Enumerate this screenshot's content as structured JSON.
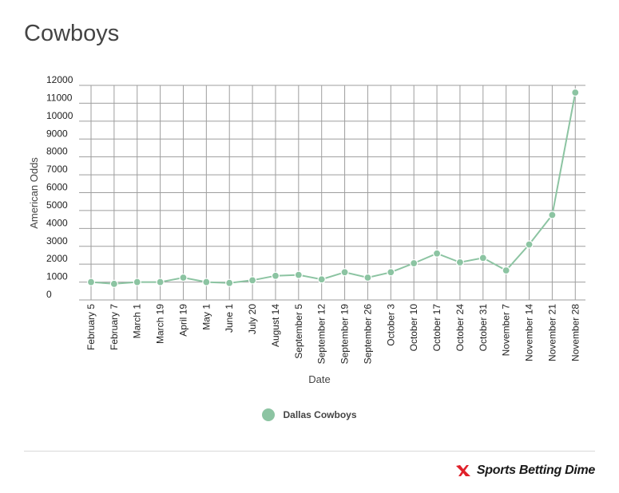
{
  "title": "Cowboys",
  "brand": {
    "name": "Sports Betting Dime",
    "icon": "sports-betting-dime-logo-icon",
    "accent": "#e0202a"
  },
  "chart_data": {
    "type": "line",
    "title": "Cowboys",
    "xlabel": "Date",
    "ylabel": "American Odds",
    "ylim": [
      0,
      12000
    ],
    "yticks": [
      0,
      1000,
      2000,
      3000,
      4000,
      5000,
      6000,
      7000,
      8000,
      9000,
      10000,
      11000,
      12000
    ],
    "grid": true,
    "legend_position": "bottom",
    "categories": [
      "February 5",
      "February 7",
      "March 1",
      "March 19",
      "April 19",
      "May 1",
      "June 1",
      "July 20",
      "August 14",
      "September 5",
      "September 12",
      "September 19",
      "September 26",
      "October 3",
      "October 10",
      "October 17",
      "October 24",
      "October 31",
      "November 7",
      "November 14",
      "November 21",
      "November 28"
    ],
    "series": [
      {
        "name": "Dallas Cowboys",
        "color": "#8cc4a2",
        "values": [
          1000,
          900,
          1000,
          1000,
          1250,
          1000,
          950,
          1100,
          1350,
          1400,
          1150,
          1550,
          1250,
          1550,
          2050,
          2600,
          2100,
          2350,
          1650,
          3100,
          4750,
          11600
        ]
      }
    ]
  }
}
